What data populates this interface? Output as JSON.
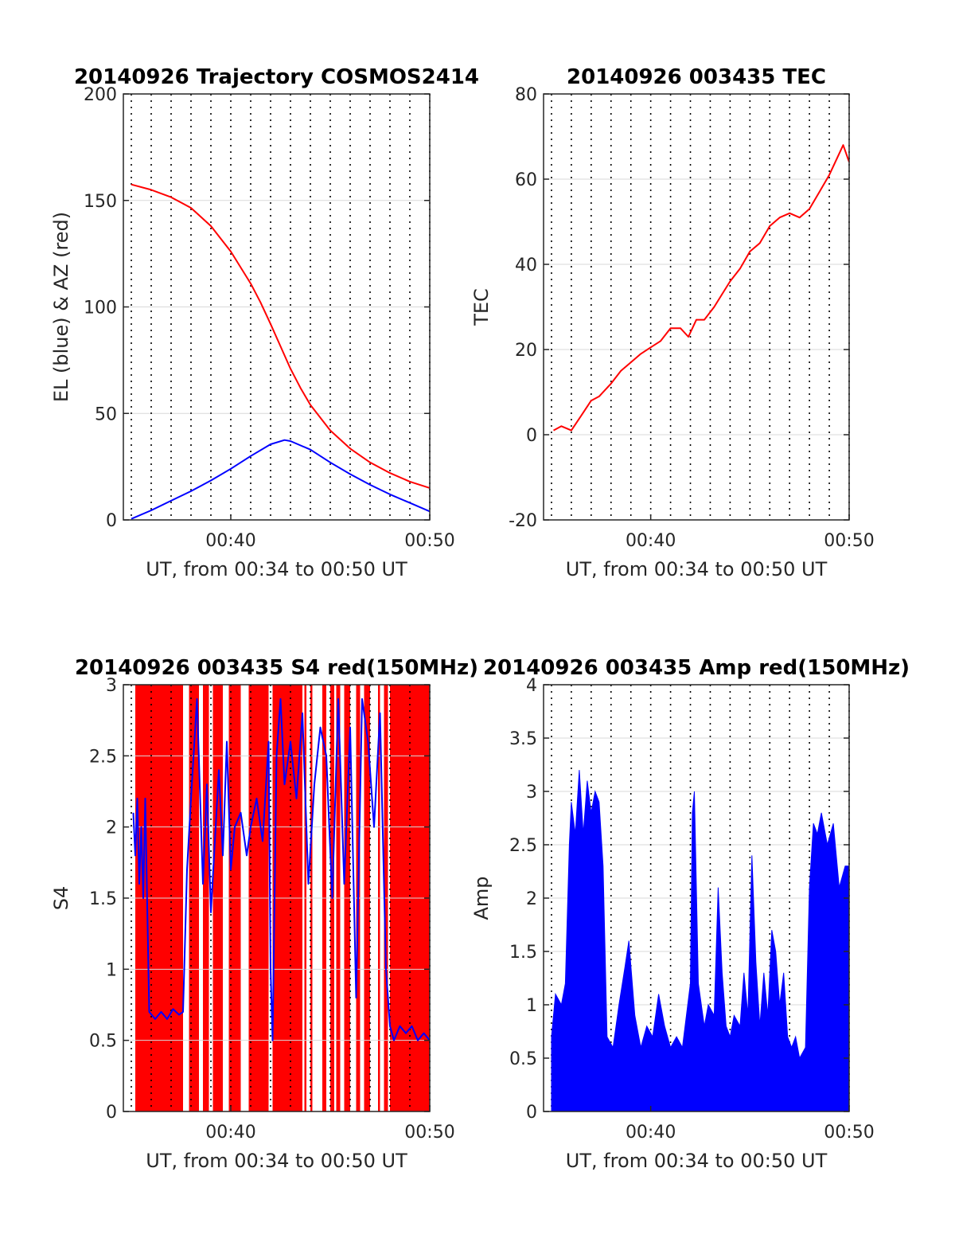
{
  "chart_data": [
    {
      "type": "line",
      "title": "20140926 Trajectory COSMOS2414",
      "xlabel": "UT, from 00:34 to 00:50 UT",
      "ylabel": "EL (blue) & AZ (red)",
      "xlim": [
        34.6,
        50.0
      ],
      "ylim": [
        0,
        200
      ],
      "x_ticks": [
        {
          "value": 40,
          "label": "00:40"
        },
        {
          "value": 50,
          "label": "00:50"
        }
      ],
      "y_ticks": [
        0,
        50,
        100,
        150,
        200
      ],
      "grid": "minute lines dotted, horizontal light gray",
      "series": [
        {
          "color": "#ff0000",
          "x": [
            35.0,
            36.0,
            37.0,
            38.0,
            39.0,
            40.0,
            41.0,
            41.5,
            42.0,
            42.5,
            43.0,
            43.5,
            44.0,
            45.0,
            46.0,
            47.0,
            48.0,
            49.0,
            50.0
          ],
          "y": [
            157.5,
            155.0,
            151.5,
            146.5,
            138.0,
            126.0,
            111.0,
            102.0,
            92.0,
            81.5,
            71.0,
            62.0,
            54.0,
            42.0,
            33.5,
            27.0,
            22.0,
            18.0,
            15.0
          ]
        },
        {
          "color": "#0000ff",
          "x": [
            35.0,
            36.0,
            37.0,
            38.0,
            39.0,
            40.0,
            41.0,
            42.0,
            42.7,
            43.0,
            44.0,
            45.0,
            46.0,
            47.0,
            48.0,
            49.0,
            50.0
          ],
          "y": [
            0.5,
            4.5,
            9.0,
            13.5,
            18.5,
            24.0,
            30.0,
            35.5,
            37.5,
            37.0,
            33.0,
            27.0,
            21.5,
            16.5,
            12.0,
            8.0,
            4.0
          ]
        }
      ]
    },
    {
      "type": "line",
      "title": "20140926 003435 TEC",
      "xlabel": "UT, from 00:34 to 00:50 UT",
      "ylabel": "TEC",
      "xlim": [
        34.6,
        50.0
      ],
      "ylim": [
        -20,
        80
      ],
      "x_ticks": [
        {
          "value": 40,
          "label": "00:40"
        },
        {
          "value": 50,
          "label": "00:50"
        }
      ],
      "y_ticks": [
        -20,
        0,
        20,
        40,
        60,
        80
      ],
      "grid": "minute lines dotted, horizontal light gray",
      "series": [
        {
          "color": "#ff0000",
          "x": [
            35.1,
            35.5,
            36.0,
            36.5,
            37.0,
            37.4,
            38.0,
            38.5,
            39.0,
            39.5,
            40.0,
            40.5,
            41.0,
            41.5,
            41.9,
            42.3,
            42.7,
            43.2,
            43.6,
            44.0,
            44.5,
            45.0,
            45.5,
            46.0,
            46.5,
            47.0,
            47.5,
            48.0,
            48.5,
            49.0,
            49.5,
            49.7,
            50.0
          ],
          "y": [
            1.0,
            2.0,
            1.0,
            4.5,
            8.0,
            9.0,
            12.0,
            15.0,
            17.0,
            19.0,
            20.5,
            22.0,
            25.0,
            25.0,
            23.0,
            27.0,
            27.0,
            30.0,
            33.0,
            36.0,
            39.0,
            43.0,
            45.0,
            49.0,
            51.0,
            52.0,
            51.0,
            53.0,
            57.0,
            61.0,
            66.0,
            68.0,
            64.0
          ]
        }
      ]
    },
    {
      "type": "line",
      "title": "20140926 003435 S4 red(150MHz)",
      "xlabel": "UT, from 00:34 to 00:50 UT",
      "ylabel": "S4",
      "xlim": [
        34.6,
        50.0
      ],
      "ylim": [
        0,
        3
      ],
      "x_ticks": [
        {
          "value": 40,
          "label": "00:40"
        },
        {
          "value": 50,
          "label": "00:50"
        }
      ],
      "y_ticks": [
        0,
        0.5,
        1,
        1.5,
        2,
        2.5,
        3
      ],
      "grid": "minute lines dotted, horizontal light gray",
      "red_fill_ranges": [
        [
          35.2,
          37.6
        ],
        [
          37.9,
          38.4
        ],
        [
          38.6,
          38.9
        ],
        [
          39.1,
          39.6
        ],
        [
          39.9,
          40.5
        ],
        [
          40.9,
          41.9
        ],
        [
          42.1,
          43.6
        ],
        [
          43.7,
          43.8
        ],
        [
          44.0,
          44.1
        ],
        [
          44.6,
          44.8
        ],
        [
          45.0,
          45.2
        ],
        [
          45.3,
          45.5
        ],
        [
          45.7,
          46.0
        ],
        [
          46.3,
          46.5
        ],
        [
          46.7,
          47.0
        ],
        [
          47.4,
          47.5
        ],
        [
          47.7,
          47.9
        ],
        [
          48.0,
          50.0
        ]
      ],
      "series": [
        {
          "color": "#0000ff",
          "x": [
            35.1,
            35.2,
            35.3,
            35.4,
            35.5,
            35.6,
            35.7,
            35.9,
            36.2,
            36.5,
            36.8,
            37.1,
            37.4,
            37.6,
            37.8,
            38.0,
            38.3,
            38.6,
            38.8,
            39.0,
            39.2,
            39.4,
            39.6,
            39.8,
            40.0,
            40.2,
            40.5,
            40.8,
            41.0,
            41.3,
            41.6,
            41.9,
            42.0,
            42.1,
            42.3,
            42.5,
            42.7,
            43.0,
            43.3,
            43.6,
            43.9,
            44.2,
            44.5,
            44.8,
            45.1,
            45.4,
            45.7,
            46.0,
            46.3,
            46.6,
            46.9,
            47.2,
            47.5,
            47.8,
            48.0,
            48.2,
            48.5,
            48.8,
            49.1,
            49.4,
            49.7,
            50.0
          ],
          "y": [
            2.1,
            1.8,
            2.2,
            1.6,
            2.0,
            1.5,
            2.2,
            0.7,
            0.65,
            0.7,
            0.65,
            0.72,
            0.68,
            0.7,
            1.7,
            2.2,
            2.9,
            1.6,
            2.3,
            1.4,
            1.9,
            2.4,
            1.8,
            2.6,
            1.7,
            2.0,
            2.1,
            1.8,
            2.0,
            2.2,
            1.9,
            2.6,
            1.0,
            0.5,
            2.5,
            2.9,
            2.3,
            2.6,
            2.2,
            2.8,
            1.6,
            2.3,
            2.7,
            2.5,
            1.5,
            2.9,
            1.6,
            2.7,
            0.8,
            2.9,
            2.6,
            2.0,
            2.8,
            1.0,
            0.6,
            0.5,
            0.6,
            0.55,
            0.6,
            0.5,
            0.55,
            0.5
          ]
        }
      ]
    },
    {
      "type": "line",
      "title": "20140926 003435 Amp red(150MHz)",
      "xlabel": "UT, from 00:34 to 00:50 UT",
      "ylabel": "Amp",
      "xlim": [
        34.6,
        50.0
      ],
      "ylim": [
        0,
        4
      ],
      "x_ticks": [
        {
          "value": 40,
          "label": "00:40"
        },
        {
          "value": 50,
          "label": "00:50"
        }
      ],
      "y_ticks": [
        0,
        0.5,
        1,
        1.5,
        2,
        2.5,
        3,
        3.5,
        4
      ],
      "grid": "minute lines dotted, horizontal light gray",
      "envelope": {
        "color": "#0000ff",
        "x": [
          35.0,
          35.2,
          35.5,
          35.7,
          35.9,
          36.0,
          36.2,
          36.4,
          36.6,
          36.8,
          37.0,
          37.2,
          37.4,
          37.6,
          37.8,
          38.1,
          38.4,
          38.7,
          38.9,
          39.2,
          39.5,
          39.8,
          40.1,
          40.4,
          40.7,
          41.0,
          41.3,
          41.6,
          41.8,
          42.0,
          42.1,
          42.2,
          42.4,
          42.7,
          42.9,
          43.2,
          43.4,
          43.6,
          43.8,
          44.0,
          44.2,
          44.5,
          44.7,
          44.9,
          45.1,
          45.3,
          45.5,
          45.7,
          45.9,
          46.1,
          46.3,
          46.5,
          46.7,
          46.9,
          47.1,
          47.3,
          47.5,
          47.8,
          48.0,
          48.2,
          48.4,
          48.6,
          48.9,
          49.2,
          49.5,
          49.8,
          50.0
        ],
        "y": [
          0.7,
          1.1,
          1.0,
          1.2,
          2.5,
          2.9,
          2.6,
          3.2,
          2.6,
          3.1,
          2.8,
          3.0,
          2.9,
          2.3,
          0.7,
          0.6,
          1.0,
          1.35,
          1.6,
          0.9,
          0.6,
          0.8,
          0.7,
          1.1,
          0.8,
          0.6,
          0.7,
          0.6,
          0.9,
          1.2,
          2.8,
          3.0,
          1.2,
          0.8,
          1.0,
          0.9,
          2.1,
          1.3,
          0.8,
          0.7,
          0.9,
          0.8,
          1.3,
          0.9,
          2.4,
          1.4,
          0.8,
          1.3,
          0.9,
          1.7,
          1.5,
          1.0,
          1.3,
          0.7,
          0.6,
          0.7,
          0.5,
          0.6,
          2.1,
          2.7,
          2.6,
          2.8,
          2.5,
          2.7,
          2.1,
          2.3,
          2.3
        ]
      },
      "floor": {
        "x": [
          35.0,
          50.0
        ],
        "y": [
          0.3,
          0.3
        ]
      }
    }
  ]
}
